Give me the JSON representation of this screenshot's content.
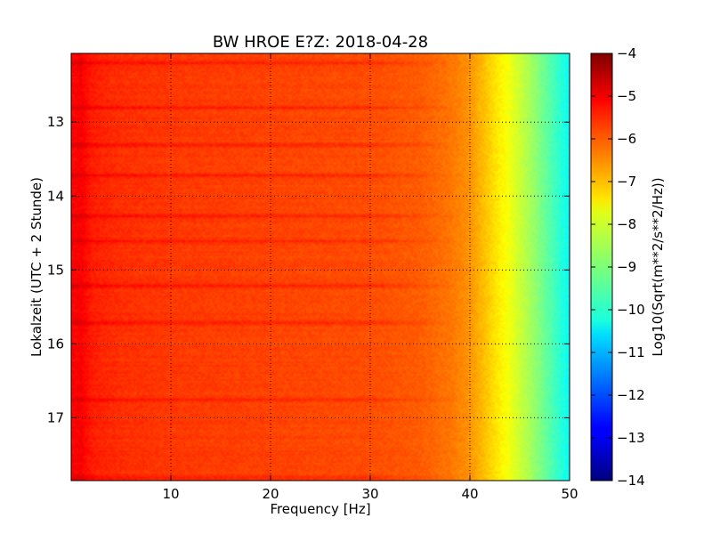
{
  "chart_data": {
    "type": "heatmap",
    "title": "BW HROE E?Z: 2018-04-28",
    "xlabel": "Frequency [Hz]",
    "ylabel": "Lokalzeit (UTC + 2 Stunde)",
    "xlim": [
      0,
      50
    ],
    "ylim": [
      12.07,
      17.85
    ],
    "y_inverted": true,
    "x_ticks": [
      10,
      20,
      30,
      40,
      50
    ],
    "x_tick_labels": [
      "10",
      "20",
      "30",
      "40",
      "50"
    ],
    "y_ticks": [
      13,
      14,
      15,
      16,
      17
    ],
    "y_tick_labels": [
      "13",
      "14",
      "15",
      "16",
      "17"
    ],
    "grid": true,
    "colormap": "jet",
    "colorbar": {
      "label": "Log10(Sqrt(m**2/s**2/Hz))",
      "range": [
        -14,
        -4
      ],
      "ticks": [
        -4,
        -5,
        -6,
        -7,
        -8,
        -9,
        -10,
        -11,
        -12,
        -13,
        -14
      ],
      "tick_labels": [
        "−4",
        "−5",
        "−6",
        "−7",
        "−8",
        "−9",
        "−10",
        "−11",
        "−12",
        "−13",
        "−14"
      ]
    },
    "spectral_profile": {
      "frequency_hz": [
        0,
        1,
        2,
        3,
        5,
        10,
        15,
        20,
        25,
        30,
        35,
        38,
        40,
        42,
        44,
        46,
        48,
        50
      ],
      "log10_amplitude": [
        -5.3,
        -5.2,
        -5.5,
        -5.6,
        -5.7,
        -5.8,
        -5.85,
        -5.9,
        -5.95,
        -6.0,
        -6.15,
        -6.4,
        -6.7,
        -7.3,
        -7.9,
        -8.6,
        -9.4,
        -10.2
      ]
    },
    "bright_time_bands": [
      12.2,
      12.8,
      13.3,
      13.7,
      14.25,
      14.6,
      15.2,
      15.7,
      16.75,
      17.8
    ],
    "colors": {
      "background": "#ffffff",
      "grid": "#000000"
    }
  }
}
